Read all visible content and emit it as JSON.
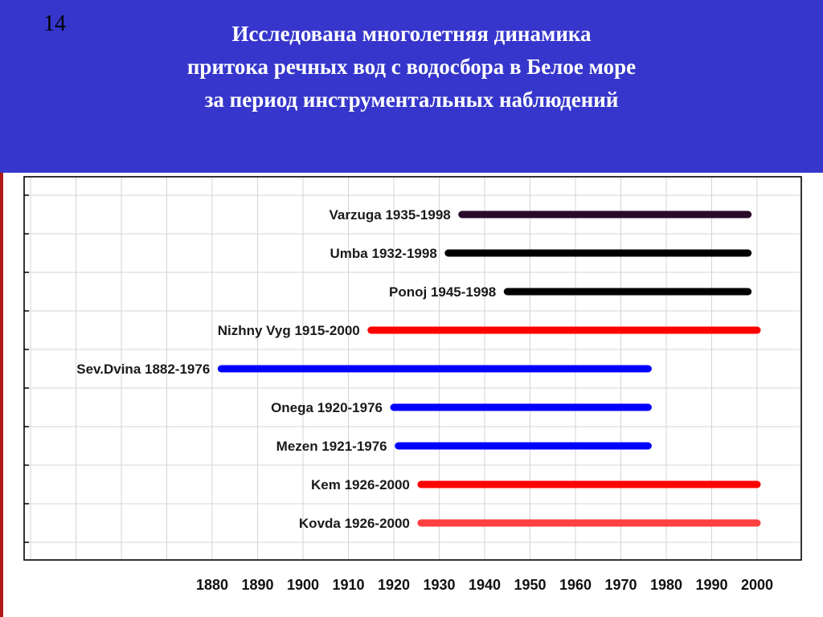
{
  "slide": {
    "number": "14",
    "title_lines": [
      "Исследована многолетняя динамика",
      "притока речных вод с водосбора в Белое море",
      "за период инструментальных наблюдений"
    ]
  },
  "colors": {
    "header_bg": "#3636cc",
    "title_text": "#ffffff"
  },
  "chart_data": {
    "type": "bar",
    "orientation": "horizontal-range",
    "title": "",
    "xlabel": "",
    "ylabel": "",
    "xlim": [
      1860,
      2008
    ],
    "x_ticks": [
      1880,
      1890,
      1900,
      1910,
      1920,
      1930,
      1940,
      1950,
      1960,
      1970,
      1980,
      1990,
      2000
    ],
    "grid": true,
    "series": [
      {
        "label": "Varzuga 1935-1998",
        "start": 1935,
        "end": 1998,
        "color": "#2a0a2a"
      },
      {
        "label": "Umba 1932-1998",
        "start": 1932,
        "end": 1998,
        "color": "#000000"
      },
      {
        "label": "Ponoj 1945-1998",
        "start": 1945,
        "end": 1998,
        "color": "#000000"
      },
      {
        "label": "Nizhny Vyg 1915-2000",
        "start": 1915,
        "end": 2000,
        "color": "#ff0000"
      },
      {
        "label": "Sev.Dvina 1882-1976",
        "start": 1882,
        "end": 1976,
        "color": "#0000ff"
      },
      {
        "label": "Onega 1920-1976",
        "start": 1920,
        "end": 1976,
        "color": "#0000ff"
      },
      {
        "label": "Mezen 1921-1976",
        "start": 1921,
        "end": 1976,
        "color": "#0000ff"
      },
      {
        "label": "Kem 1926-2000",
        "start": 1926,
        "end": 2000,
        "color": "#ff0000"
      },
      {
        "label": "Kovda 1926-2000",
        "start": 1926,
        "end": 2000,
        "color": "#ff4040"
      }
    ]
  }
}
